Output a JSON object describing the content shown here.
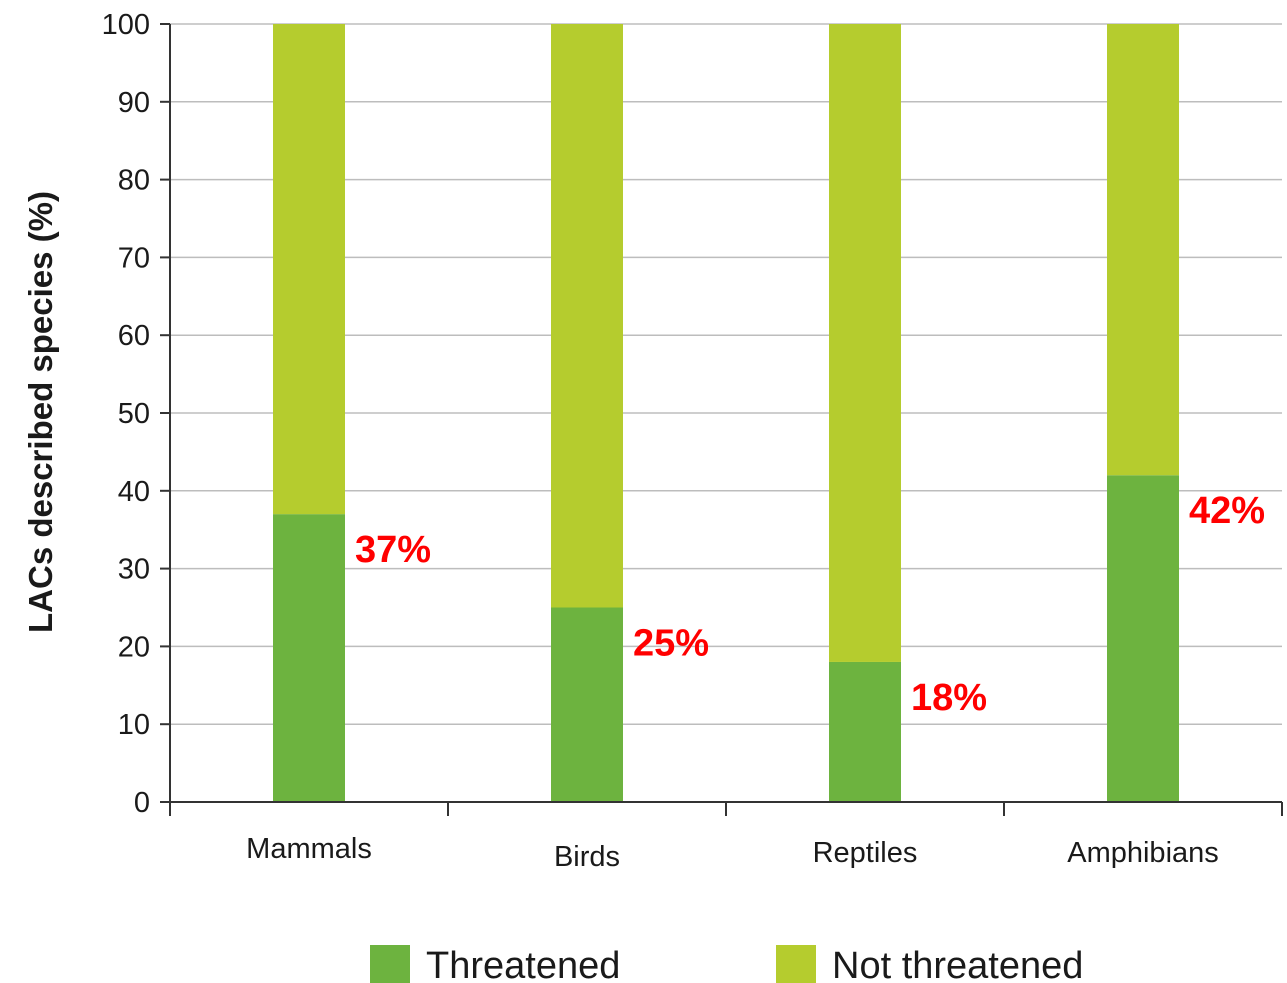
{
  "chart_data": {
    "type": "bar",
    "stacked": true,
    "categories": [
      "Mammals",
      "Birds",
      "Reptiles",
      "Amphibians"
    ],
    "series": [
      {
        "name": "Threatened",
        "values": [
          37,
          25,
          18,
          42
        ]
      },
      {
        "name": "Not threatened",
        "values": [
          63,
          75,
          82,
          58
        ]
      }
    ],
    "data_labels": [
      "37%",
      "25%",
      "18%",
      "42%"
    ],
    "ylabel": "LACs described species (%)",
    "xlabel": "",
    "ylim": [
      0,
      100
    ],
    "yticks": [
      0,
      10,
      20,
      30,
      40,
      50,
      60,
      70,
      80,
      90,
      100
    ],
    "grid": true,
    "legend": "bottom",
    "colors": {
      "threatened": "#6db33f",
      "not_threatened": "#b5cc2e",
      "data_label": "#ff0000",
      "grid": "#bdbdbd",
      "axis": "#333333"
    }
  }
}
